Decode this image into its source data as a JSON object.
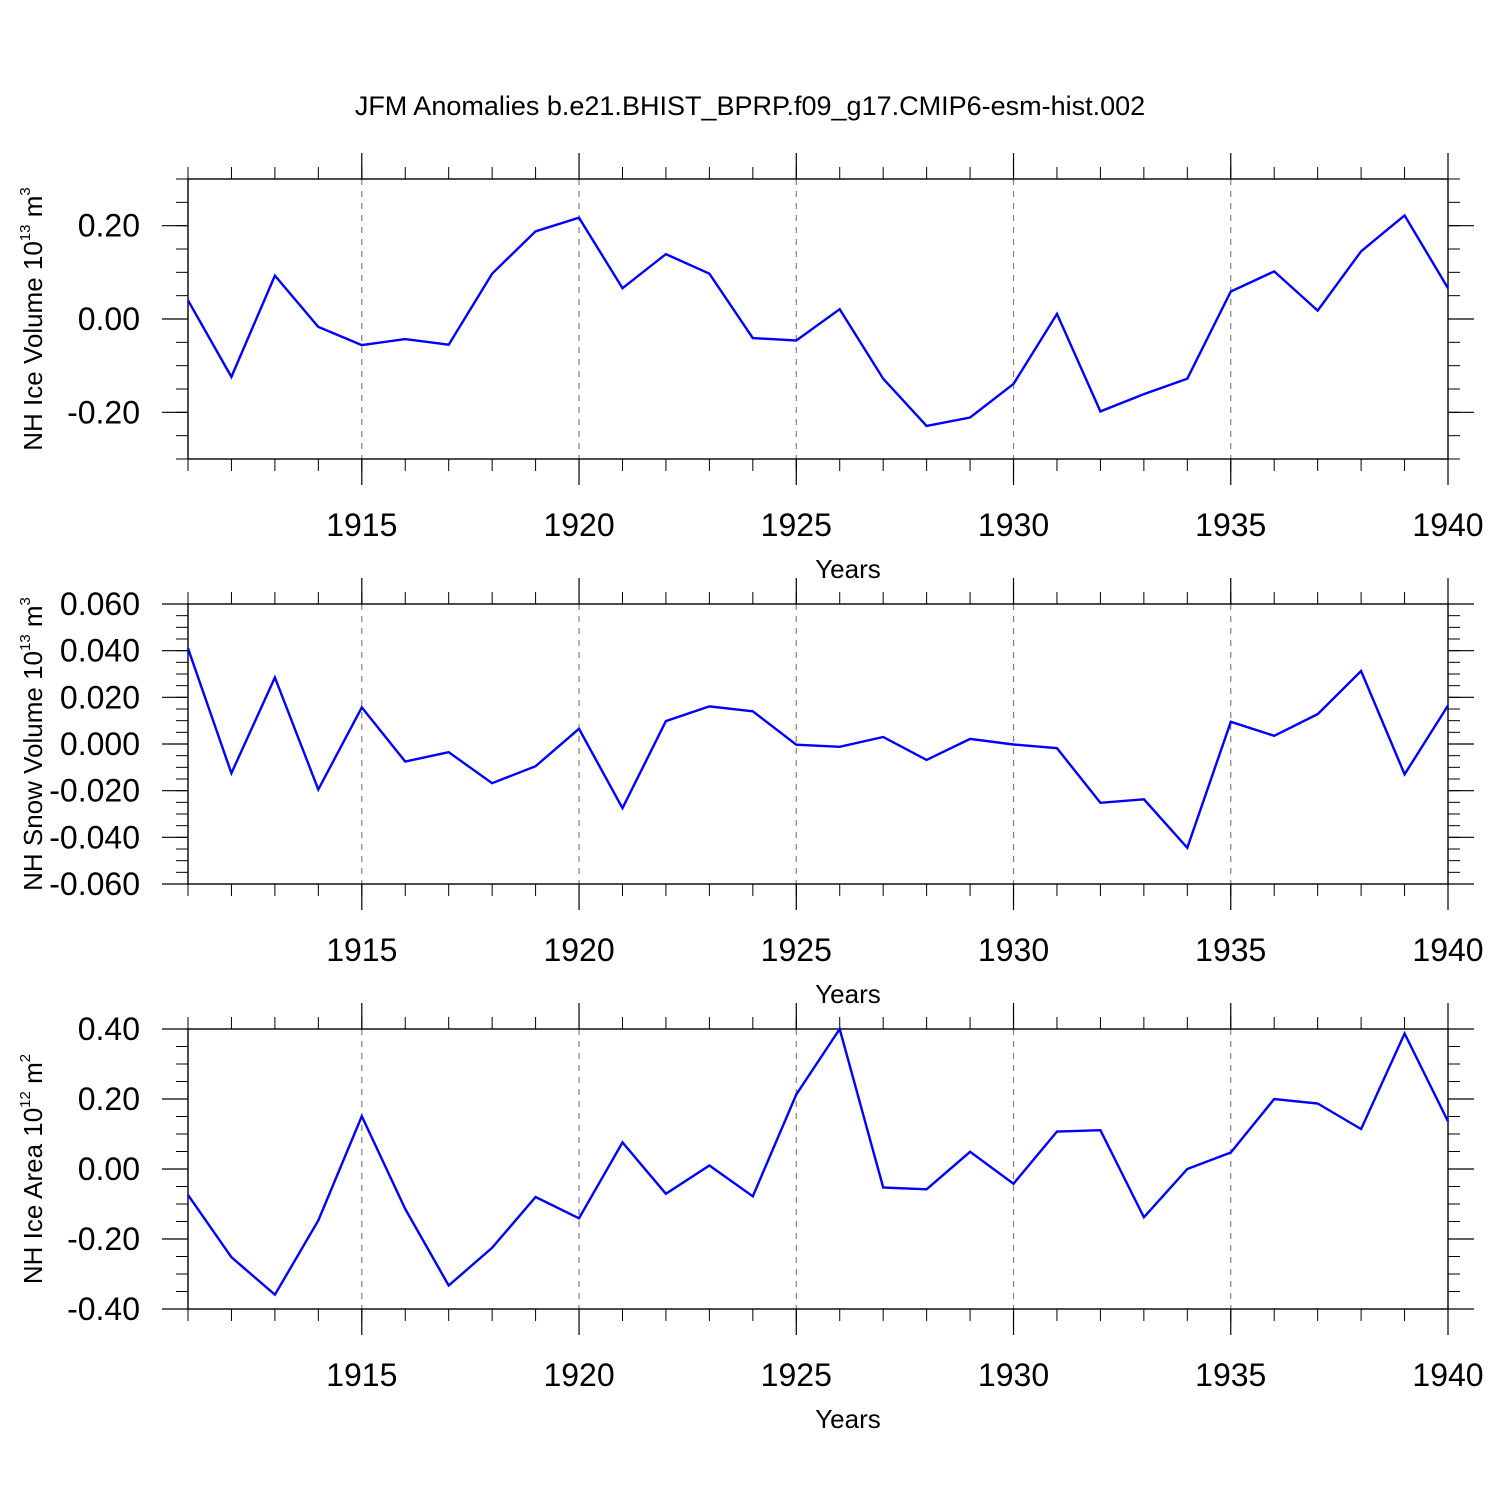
{
  "title": "JFM Anomalies b.e21.BHIST_BPRP.f09_g17.CMIP6-esm-hist.002",
  "colors": {
    "line": "#0000ff",
    "axis": "#000000",
    "grid": "#808080"
  },
  "chart_data": [
    {
      "type": "line",
      "ylabel": {
        "text": "NH Ice Volume 10",
        "exp": "13",
        "unit": " m",
        "unit_exp": "3"
      },
      "xlabel": "Years",
      "xlim": [
        1911,
        1940
      ],
      "ylim": [
        -0.3,
        0.3
      ],
      "yticks": [
        -0.2,
        0.0,
        0.2
      ],
      "ytick_labels": [
        "-0.20",
        "0.00",
        "0.20"
      ],
      "yminor_step": 0.05,
      "xticks": [
        1915,
        1920,
        1925,
        1930,
        1935,
        1940
      ],
      "xtick_labels": [
        "1915",
        "1920",
        "1925",
        "1930",
        "1935",
        "1940"
      ],
      "x": [
        1911,
        1912,
        1913,
        1914,
        1915,
        1916,
        1917,
        1918,
        1919,
        1920,
        1921,
        1922,
        1923,
        1924,
        1925,
        1926,
        1927,
        1928,
        1929,
        1930,
        1931,
        1932,
        1933,
        1934,
        1935,
        1936,
        1937,
        1938,
        1939,
        1940
      ],
      "y": [
        0.04,
        -0.124,
        0.093,
        -0.017,
        -0.056,
        -0.043,
        -0.055,
        0.097,
        0.188,
        0.217,
        0.066,
        0.139,
        0.097,
        -0.041,
        -0.046,
        0.021,
        -0.128,
        -0.229,
        -0.211,
        -0.139,
        0.011,
        -0.198,
        -0.161,
        -0.128,
        0.059,
        0.102,
        0.018,
        0.145,
        0.222,
        0.066
      ]
    },
    {
      "type": "line",
      "ylabel": {
        "text": "NH Snow Volume 10",
        "exp": "13",
        "unit": " m",
        "unit_exp": "3"
      },
      "xlabel": "Years",
      "xlim": [
        1911,
        1940
      ],
      "ylim": [
        -0.06,
        0.06
      ],
      "yticks": [
        -0.06,
        -0.04,
        -0.02,
        0.0,
        0.02,
        0.04,
        0.06
      ],
      "ytick_labels": [
        "-0.060",
        "-0.040",
        "-0.020",
        "0.000",
        "0.020",
        "0.040",
        "0.060"
      ],
      "yminor_step": 0.005,
      "xticks": [
        1915,
        1920,
        1925,
        1930,
        1935,
        1940
      ],
      "xtick_labels": [
        "1915",
        "1920",
        "1925",
        "1930",
        "1935",
        "1940"
      ],
      "x": [
        1911,
        1912,
        1913,
        1914,
        1915,
        1916,
        1917,
        1918,
        1919,
        1920,
        1921,
        1922,
        1923,
        1924,
        1925,
        1926,
        1927,
        1928,
        1929,
        1930,
        1931,
        1932,
        1933,
        1934,
        1935,
        1936,
        1937,
        1938,
        1939,
        1940
      ],
      "y": [
        0.041,
        -0.0125,
        0.0285,
        -0.0195,
        0.0157,
        -0.0075,
        -0.0035,
        -0.0168,
        -0.0095,
        0.0065,
        -0.0275,
        0.0098,
        0.0161,
        0.014,
        -0.0003,
        -0.0012,
        0.003,
        -0.0068,
        0.0022,
        -0.0002,
        -0.0018,
        -0.0252,
        -0.0237,
        -0.0445,
        0.0095,
        0.0035,
        0.0128,
        0.0313,
        -0.013,
        0.0165
      ]
    },
    {
      "type": "line",
      "ylabel": {
        "text": "NH Ice Area 10",
        "exp": "12",
        "unit": " m",
        "unit_exp": "2"
      },
      "xlabel": "Years",
      "xlim": [
        1911,
        1940
      ],
      "ylim": [
        -0.4,
        0.4
      ],
      "yticks": [
        -0.4,
        -0.2,
        0.0,
        0.2,
        0.4
      ],
      "ytick_labels": [
        "-0.40",
        "-0.20",
        "0.00",
        "0.20",
        "0.40"
      ],
      "yminor_step": 0.05,
      "xticks": [
        1915,
        1920,
        1925,
        1930,
        1935,
        1940
      ],
      "xtick_labels": [
        "1915",
        "1920",
        "1925",
        "1930",
        "1935",
        "1940"
      ],
      "x": [
        1911,
        1912,
        1913,
        1914,
        1915,
        1916,
        1917,
        1918,
        1919,
        1920,
        1921,
        1922,
        1923,
        1924,
        1925,
        1926,
        1927,
        1928,
        1929,
        1930,
        1931,
        1932,
        1933,
        1934,
        1935,
        1936,
        1937,
        1938,
        1939,
        1940
      ],
      "y": [
        -0.074,
        -0.252,
        -0.359,
        -0.147,
        0.151,
        -0.114,
        -0.333,
        -0.225,
        -0.08,
        -0.141,
        0.076,
        -0.071,
        0.01,
        -0.078,
        0.213,
        0.4,
        -0.053,
        -0.058,
        0.049,
        -0.042,
        0.107,
        0.111,
        -0.138,
        0.0,
        0.047,
        0.2,
        0.187,
        0.114,
        0.387,
        0.136
      ]
    }
  ]
}
